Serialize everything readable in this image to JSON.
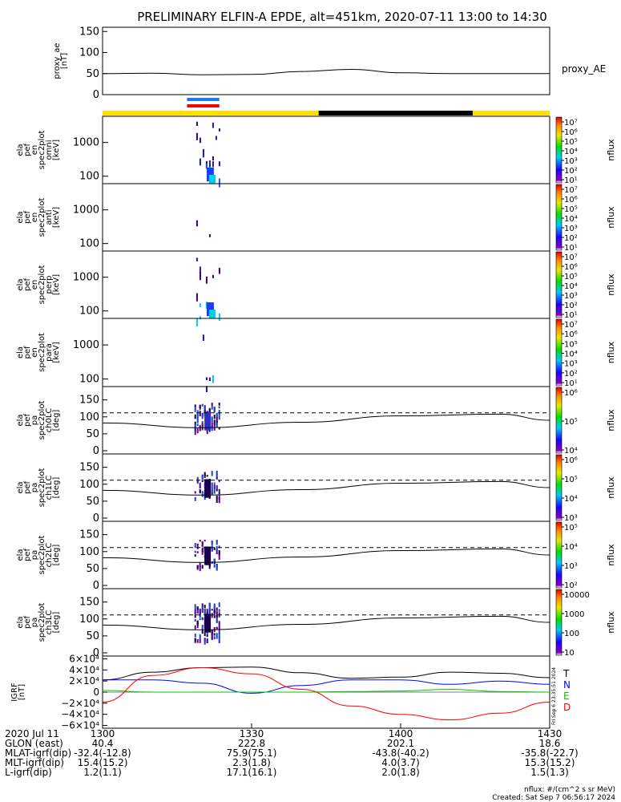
{
  "title": "PRELIMINARY ELFIN-A EPDE, alt=451km, 2020-07-11 13:00 to 14:30",
  "proxy_ae": {
    "ylabel": [
      "proxy_ae",
      "[nT]"
    ],
    "yticks": [
      "0",
      "50",
      "100",
      "150"
    ],
    "legend": "proxy_AE"
  },
  "spectrograms": [
    {
      "ylabel": [
        "ela",
        "pef",
        "en",
        "spec2plot",
        "omni",
        "[keV]"
      ],
      "yticks": [
        "100",
        "1000"
      ]
    },
    {
      "ylabel": [
        "ela",
        "pef",
        "en",
        "spec2plot",
        "anti",
        "[keV]"
      ],
      "yticks": [
        "100",
        "1000"
      ]
    },
    {
      "ylabel": [
        "ela",
        "pef",
        "en",
        "spec2plot",
        "perp",
        "[keV]"
      ],
      "yticks": [
        "100",
        "1000"
      ]
    },
    {
      "ylabel": [
        "ela",
        "pef",
        "en",
        "spec2plot",
        "para",
        "[keV]"
      ],
      "yticks": [
        "100",
        "1000"
      ]
    }
  ],
  "pitch_angle_panels": [
    {
      "ylabel": [
        "ela",
        "pef",
        "pa",
        "spec2plot",
        "ch0LC",
        "[deg]"
      ],
      "yticks": [
        "0",
        "50",
        "100",
        "150"
      ]
    },
    {
      "ylabel": [
        "ela",
        "pef",
        "pa",
        "spec2plot",
        "ch1LC",
        "[deg]"
      ],
      "yticks": [
        "0",
        "50",
        "100",
        "150"
      ]
    },
    {
      "ylabel": [
        "ela",
        "pef",
        "pa",
        "spec2plot",
        "ch2LC",
        "[deg]"
      ],
      "yticks": [
        "0",
        "50",
        "100",
        "150"
      ]
    },
    {
      "ylabel": [
        "ela",
        "pef",
        "pa",
        "spec2plot",
        "ch3LC",
        "[deg]"
      ],
      "yticks": [
        "0",
        "50",
        "100",
        "150"
      ]
    }
  ],
  "colorbars": [
    {
      "label": "nflux",
      "ticks": [
        "10¹",
        "10²",
        "10³",
        "10⁴",
        "10⁵",
        "10⁶",
        "10⁷"
      ]
    },
    {
      "label": "nflux",
      "ticks": [
        "10¹",
        "10²",
        "10³",
        "10⁴",
        "10⁵",
        "10⁶",
        "10⁷"
      ]
    },
    {
      "label": "nflux",
      "ticks": [
        "10¹",
        "10²",
        "10³",
        "10⁴",
        "10⁵",
        "10⁶",
        "10⁷"
      ]
    },
    {
      "label": "nflux",
      "ticks": [
        "10¹",
        "10²",
        "10³",
        "10⁴",
        "10⁵",
        "10⁶",
        "10⁷"
      ]
    },
    {
      "label": "nflux",
      "ticks": [
        "10⁴",
        "10⁵",
        "10⁶"
      ]
    },
    {
      "label": "nflux",
      "ticks": [
        "10³",
        "10⁴",
        "10⁵",
        "10⁶"
      ]
    },
    {
      "label": "nflux",
      "ticks": [
        "10²",
        "10³",
        "10⁴",
        "10⁵"
      ]
    },
    {
      "label": "nflux",
      "ticks": [
        "10",
        "100",
        "1000",
        "10000"
      ]
    }
  ],
  "igrf": {
    "ylabel": [
      "IGRF",
      "[nT]"
    ],
    "yticks": [
      "6×10⁴",
      "4×10⁴",
      "2×10⁴",
      "0",
      "−2×10⁴",
      "−4×10⁴",
      "−6×10⁴"
    ],
    "legend": [
      {
        "label": "T",
        "color": "#000000"
      },
      {
        "label": "N",
        "color": "#0000ff"
      },
      {
        "label": "E",
        "color": "#00c800"
      },
      {
        "label": "D",
        "color": "#ff0000"
      }
    ],
    "stamp": "Fri Sep  6 23:35:51 2024"
  },
  "footer": {
    "rows": [
      {
        "label": "2020 Jul 11",
        "values": [
          "1300",
          "1330",
          "1400",
          "1430"
        ]
      },
      {
        "label": "GLON (east)",
        "values": [
          "40.4",
          "222.8",
          "202.1",
          "18.6"
        ]
      },
      {
        "label": "MLAT-igrf(dip)",
        "values": [
          "-32.4(-12.8)",
          "75.9(75.1)",
          "-43.8(-40.2)",
          "-35.8(-22.7)"
        ]
      },
      {
        "label": "MLT-igrf(dip)",
        "values": [
          "15.4(15.2)",
          "2.3(1.8)",
          "4.0(3.7)",
          "15.3(15.2)"
        ]
      },
      {
        "label": "L-igrf(dip)",
        "values": [
          "1.2(1.1)",
          "17.1(16.1)",
          "2.0(1.8)",
          "1.5(1.3)"
        ]
      }
    ],
    "units": "nflux: #/(cm^2 s sr MeV)",
    "created": "Created: Sat Sep  7 06:56:17 2024"
  },
  "colors": {
    "day_bar": "#ffe000",
    "night_bar": "#000000",
    "marker_blue": "#1e78ff",
    "marker_red": "#ff0000"
  },
  "chart_data": {
    "type": "heatmap",
    "time_range": [
      "2020-07-11 13:00",
      "2020-07-11 14:30"
    ],
    "proxy_ae": {
      "t_min": [
        0,
        10,
        20,
        30,
        40,
        50,
        60,
        70,
        80,
        90
      ],
      "values": [
        50,
        51,
        47,
        48,
        55,
        60,
        52,
        50,
        50,
        50
      ],
      "ylim": [
        0,
        150
      ]
    },
    "spectrograms": {
      "ylim_kev": [
        60,
        6000
      ],
      "scale": "log",
      "burst_interval_min": [
        19.5,
        23.5
      ]
    },
    "pitch_angle": {
      "ylim_deg": [
        0,
        180
      ],
      "loss_cone_dashed_deg": 112,
      "anti_loss_cone_solid": {
        "t_min": [
          0,
          20,
          40,
          60,
          80,
          90
        ],
        "values": [
          82,
          68,
          84,
          103,
          108,
          90
        ]
      }
    },
    "igrf": {
      "ylim": [
        -65000,
        65000
      ],
      "t_min": [
        0,
        10,
        20,
        30,
        40,
        50,
        60,
        70,
        80,
        90
      ],
      "series": [
        {
          "name": "T",
          "values": [
            22000,
            36000,
            44000,
            45000,
            35000,
            25000,
            27000,
            36000,
            34000,
            26000
          ]
        },
        {
          "name": "N",
          "values": [
            22000,
            22000,
            16000,
            -2000,
            12000,
            22000,
            22000,
            14000,
            20000,
            14000
          ]
        },
        {
          "name": "E",
          "values": [
            3000,
            0,
            0,
            0,
            0,
            1000,
            2000,
            5000,
            1000,
            0
          ]
        },
        {
          "name": "D",
          "values": [
            -18000,
            30000,
            44000,
            33000,
            5000,
            -25000,
            -40000,
            -50000,
            -38000,
            -18000
          ]
        }
      ]
    }
  }
}
